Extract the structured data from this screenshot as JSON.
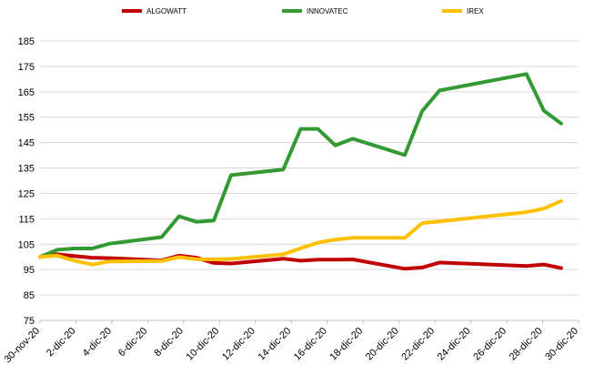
{
  "chart_data": {
    "type": "line",
    "title": "",
    "xlabel": "",
    "ylabel": "",
    "ylim": [
      75,
      185
    ],
    "y_ticks": [
      75,
      85,
      95,
      105,
      115,
      125,
      135,
      145,
      155,
      165,
      175,
      185
    ],
    "x_tick_labels": [
      "30-nov-20",
      "2-dic-20",
      "4-dic-20",
      "6-dic-20",
      "8-dic-20",
      "10-dic-20",
      "12-dic-20",
      "14-dic-20",
      "16-dic-20",
      "18-dic-20",
      "20-dic-20",
      "22-dic-20",
      "24-dic-20",
      "26-dic-20",
      "28-dic-20",
      "30-dic-20"
    ],
    "x_range": [
      "2020-11-30",
      "2020-12-31"
    ],
    "grid": "horizontal",
    "legend_position": "top",
    "series": [
      {
        "name": "ALGOWATT",
        "color": "#c00000",
        "points": [
          [
            "2020-11-30",
            100.0
          ],
          [
            "2020-12-01",
            101.0
          ],
          [
            "2020-12-02",
            100.3
          ],
          [
            "2020-12-03",
            99.7
          ],
          [
            "2020-12-04",
            99.5
          ],
          [
            "2020-12-07",
            98.6
          ],
          [
            "2020-12-08",
            100.5
          ],
          [
            "2020-12-09",
            99.7
          ],
          [
            "2020-12-10",
            97.6
          ],
          [
            "2020-12-11",
            97.4
          ],
          [
            "2020-12-14",
            99.3
          ],
          [
            "2020-12-15",
            98.5
          ],
          [
            "2020-12-16",
            98.9
          ],
          [
            "2020-12-17",
            98.9
          ],
          [
            "2020-12-18",
            99.0
          ],
          [
            "2020-12-21",
            95.3
          ],
          [
            "2020-12-22",
            95.8
          ],
          [
            "2020-12-23",
            97.8
          ],
          [
            "2020-12-28",
            96.4
          ],
          [
            "2020-12-29",
            97.0
          ],
          [
            "2020-12-30",
            95.6
          ]
        ]
      },
      {
        "name": "INNOVATEC",
        "color": "#339933",
        "points": [
          [
            "2020-11-30",
            100.0
          ],
          [
            "2020-12-01",
            102.8
          ],
          [
            "2020-12-02",
            103.3
          ],
          [
            "2020-12-03",
            103.3
          ],
          [
            "2020-12-04",
            105.2
          ],
          [
            "2020-12-07",
            107.8
          ],
          [
            "2020-12-08",
            116.0
          ],
          [
            "2020-12-09",
            113.8
          ],
          [
            "2020-12-10",
            114.3
          ],
          [
            "2020-12-11",
            132.2
          ],
          [
            "2020-12-14",
            134.4
          ],
          [
            "2020-12-15",
            150.4
          ],
          [
            "2020-12-16",
            150.4
          ],
          [
            "2020-12-17",
            143.9
          ],
          [
            "2020-12-18",
            146.5
          ],
          [
            "2020-12-21",
            140.1
          ],
          [
            "2020-12-22",
            157.4
          ],
          [
            "2020-12-23",
            165.5
          ],
          [
            "2020-12-28",
            172.0
          ],
          [
            "2020-12-29",
            157.6
          ],
          [
            "2020-12-30",
            152.5
          ]
        ]
      },
      {
        "name": "IREX",
        "color": "#ffc000",
        "points": [
          [
            "2020-11-30",
            100.0
          ],
          [
            "2020-12-01",
            100.5
          ],
          [
            "2020-12-02",
            98.5
          ],
          [
            "2020-12-03",
            97.0
          ],
          [
            "2020-12-04",
            98.2
          ],
          [
            "2020-12-07",
            98.4
          ],
          [
            "2020-12-08",
            99.9
          ],
          [
            "2020-12-09",
            99.1
          ],
          [
            "2020-12-10",
            99.0
          ],
          [
            "2020-12-11",
            99.2
          ],
          [
            "2020-12-14",
            101.0
          ],
          [
            "2020-12-15",
            103.4
          ],
          [
            "2020-12-16",
            105.6
          ],
          [
            "2020-12-17",
            106.8
          ],
          [
            "2020-12-18",
            107.5
          ],
          [
            "2020-12-21",
            107.5
          ],
          [
            "2020-12-22",
            113.3
          ],
          [
            "2020-12-23",
            114.0
          ],
          [
            "2020-12-28",
            117.6
          ],
          [
            "2020-12-29",
            119.0
          ],
          [
            "2020-12-30",
            122.0
          ]
        ]
      }
    ]
  }
}
